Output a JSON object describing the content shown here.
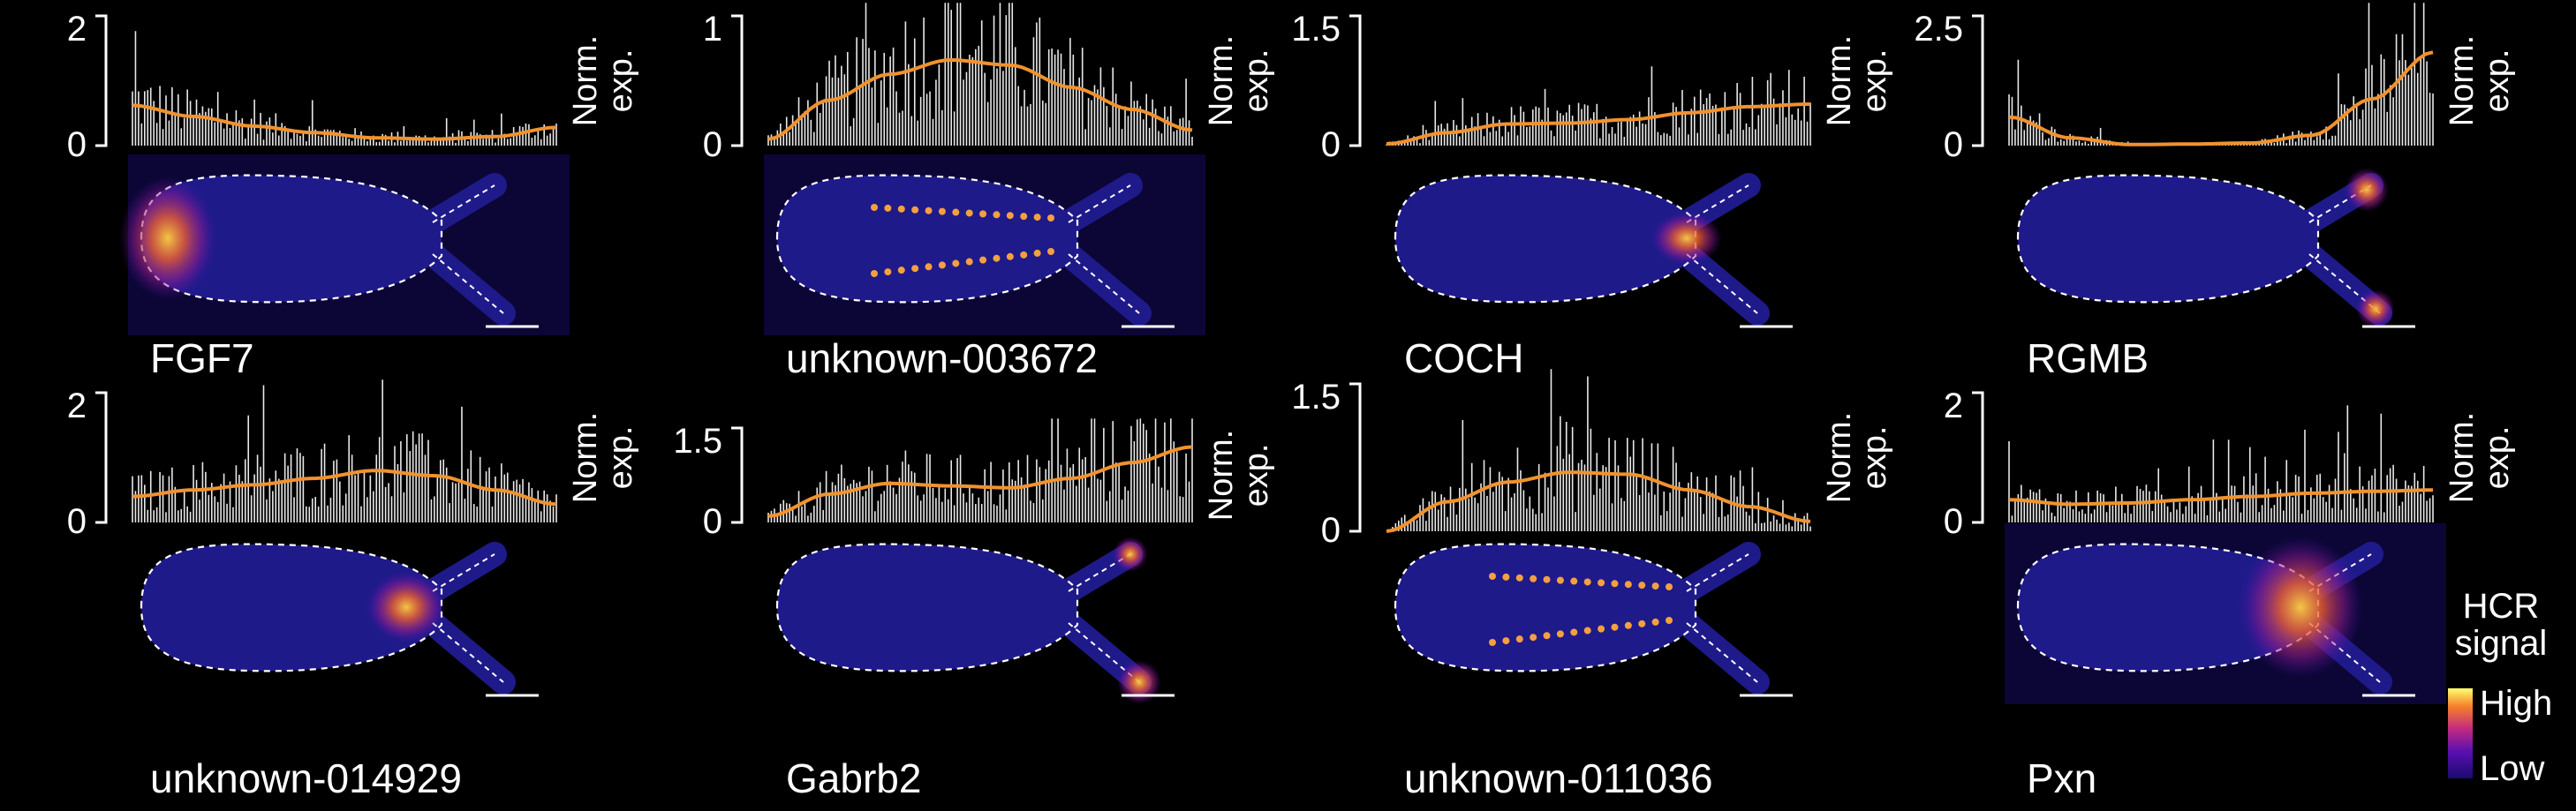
{
  "y_axis_title": [
    "Norm.",
    "exp."
  ],
  "legend": {
    "title": [
      "HCR",
      "signal"
    ],
    "high_label": "High",
    "low_label": "Low",
    "colors": [
      "#1a0a6e",
      "#4a10b8",
      "#8a1ea8",
      "#d0306c",
      "#f6702a",
      "#ffd21e",
      "#ffff80"
    ]
  },
  "colors": {
    "trend": "#f0922e",
    "bars": "#ffffff",
    "outline": "#ffffff",
    "tissue": "#1f1a8a"
  },
  "panels": [
    {
      "gene": "FGF7",
      "ymax": 2,
      "ticks": [
        "0",
        "2"
      ],
      "trend": [
        0.62,
        0.45,
        0.3,
        0.2,
        0.12,
        0.1,
        0.14,
        0.28
      ],
      "hotspot": "head"
    },
    {
      "gene": "unknown-003672",
      "ymax": 1,
      "ticks": [
        "0",
        "1"
      ],
      "trend": [
        0.05,
        0.35,
        0.55,
        0.66,
        0.62,
        0.45,
        0.28,
        0.12
      ],
      "hotspot": "stripes"
    },
    {
      "gene": "COCH",
      "ymax": 1.5,
      "ticks": [
        "0",
        "1.5"
      ],
      "trend": [
        0.02,
        0.15,
        0.25,
        0.26,
        0.3,
        0.38,
        0.45,
        0.48
      ],
      "hotspot": "tentacle-base"
    },
    {
      "gene": "RGMB",
      "ymax": 2.5,
      "ticks": [
        "0",
        "2.5"
      ],
      "trend": [
        0.55,
        0.15,
        0.02,
        0.03,
        0.05,
        0.2,
        0.9,
        1.8
      ],
      "hotspot": "tentacle-tips"
    },
    {
      "gene": "unknown-014929",
      "ymax": 2,
      "ticks": [
        "0",
        "2"
      ],
      "trend": [
        0.4,
        0.5,
        0.58,
        0.68,
        0.8,
        0.72,
        0.5,
        0.28
      ],
      "hotspot": "neck"
    },
    {
      "gene": "Gabrb2",
      "ymax": 1.5,
      "ticks": [
        "0",
        "1.5"
      ],
      "trend": [
        0.1,
        0.45,
        0.62,
        0.58,
        0.55,
        0.7,
        0.95,
        1.2
      ],
      "hotspot": "tips"
    },
    {
      "gene": "unknown-011036",
      "ymax": 1.5,
      "ticks": [
        "0",
        "1.5"
      ],
      "trend": [
        0.0,
        0.3,
        0.5,
        0.6,
        0.58,
        0.42,
        0.25,
        0.1
      ],
      "hotspot": "dots"
    },
    {
      "gene": "Pxn",
      "ymax": 2,
      "ticks": [
        "0",
        "2"
      ],
      "trend": [
        0.35,
        0.28,
        0.3,
        0.35,
        0.4,
        0.45,
        0.48,
        0.5
      ],
      "hotspot": "tentacle-zone"
    }
  ]
}
